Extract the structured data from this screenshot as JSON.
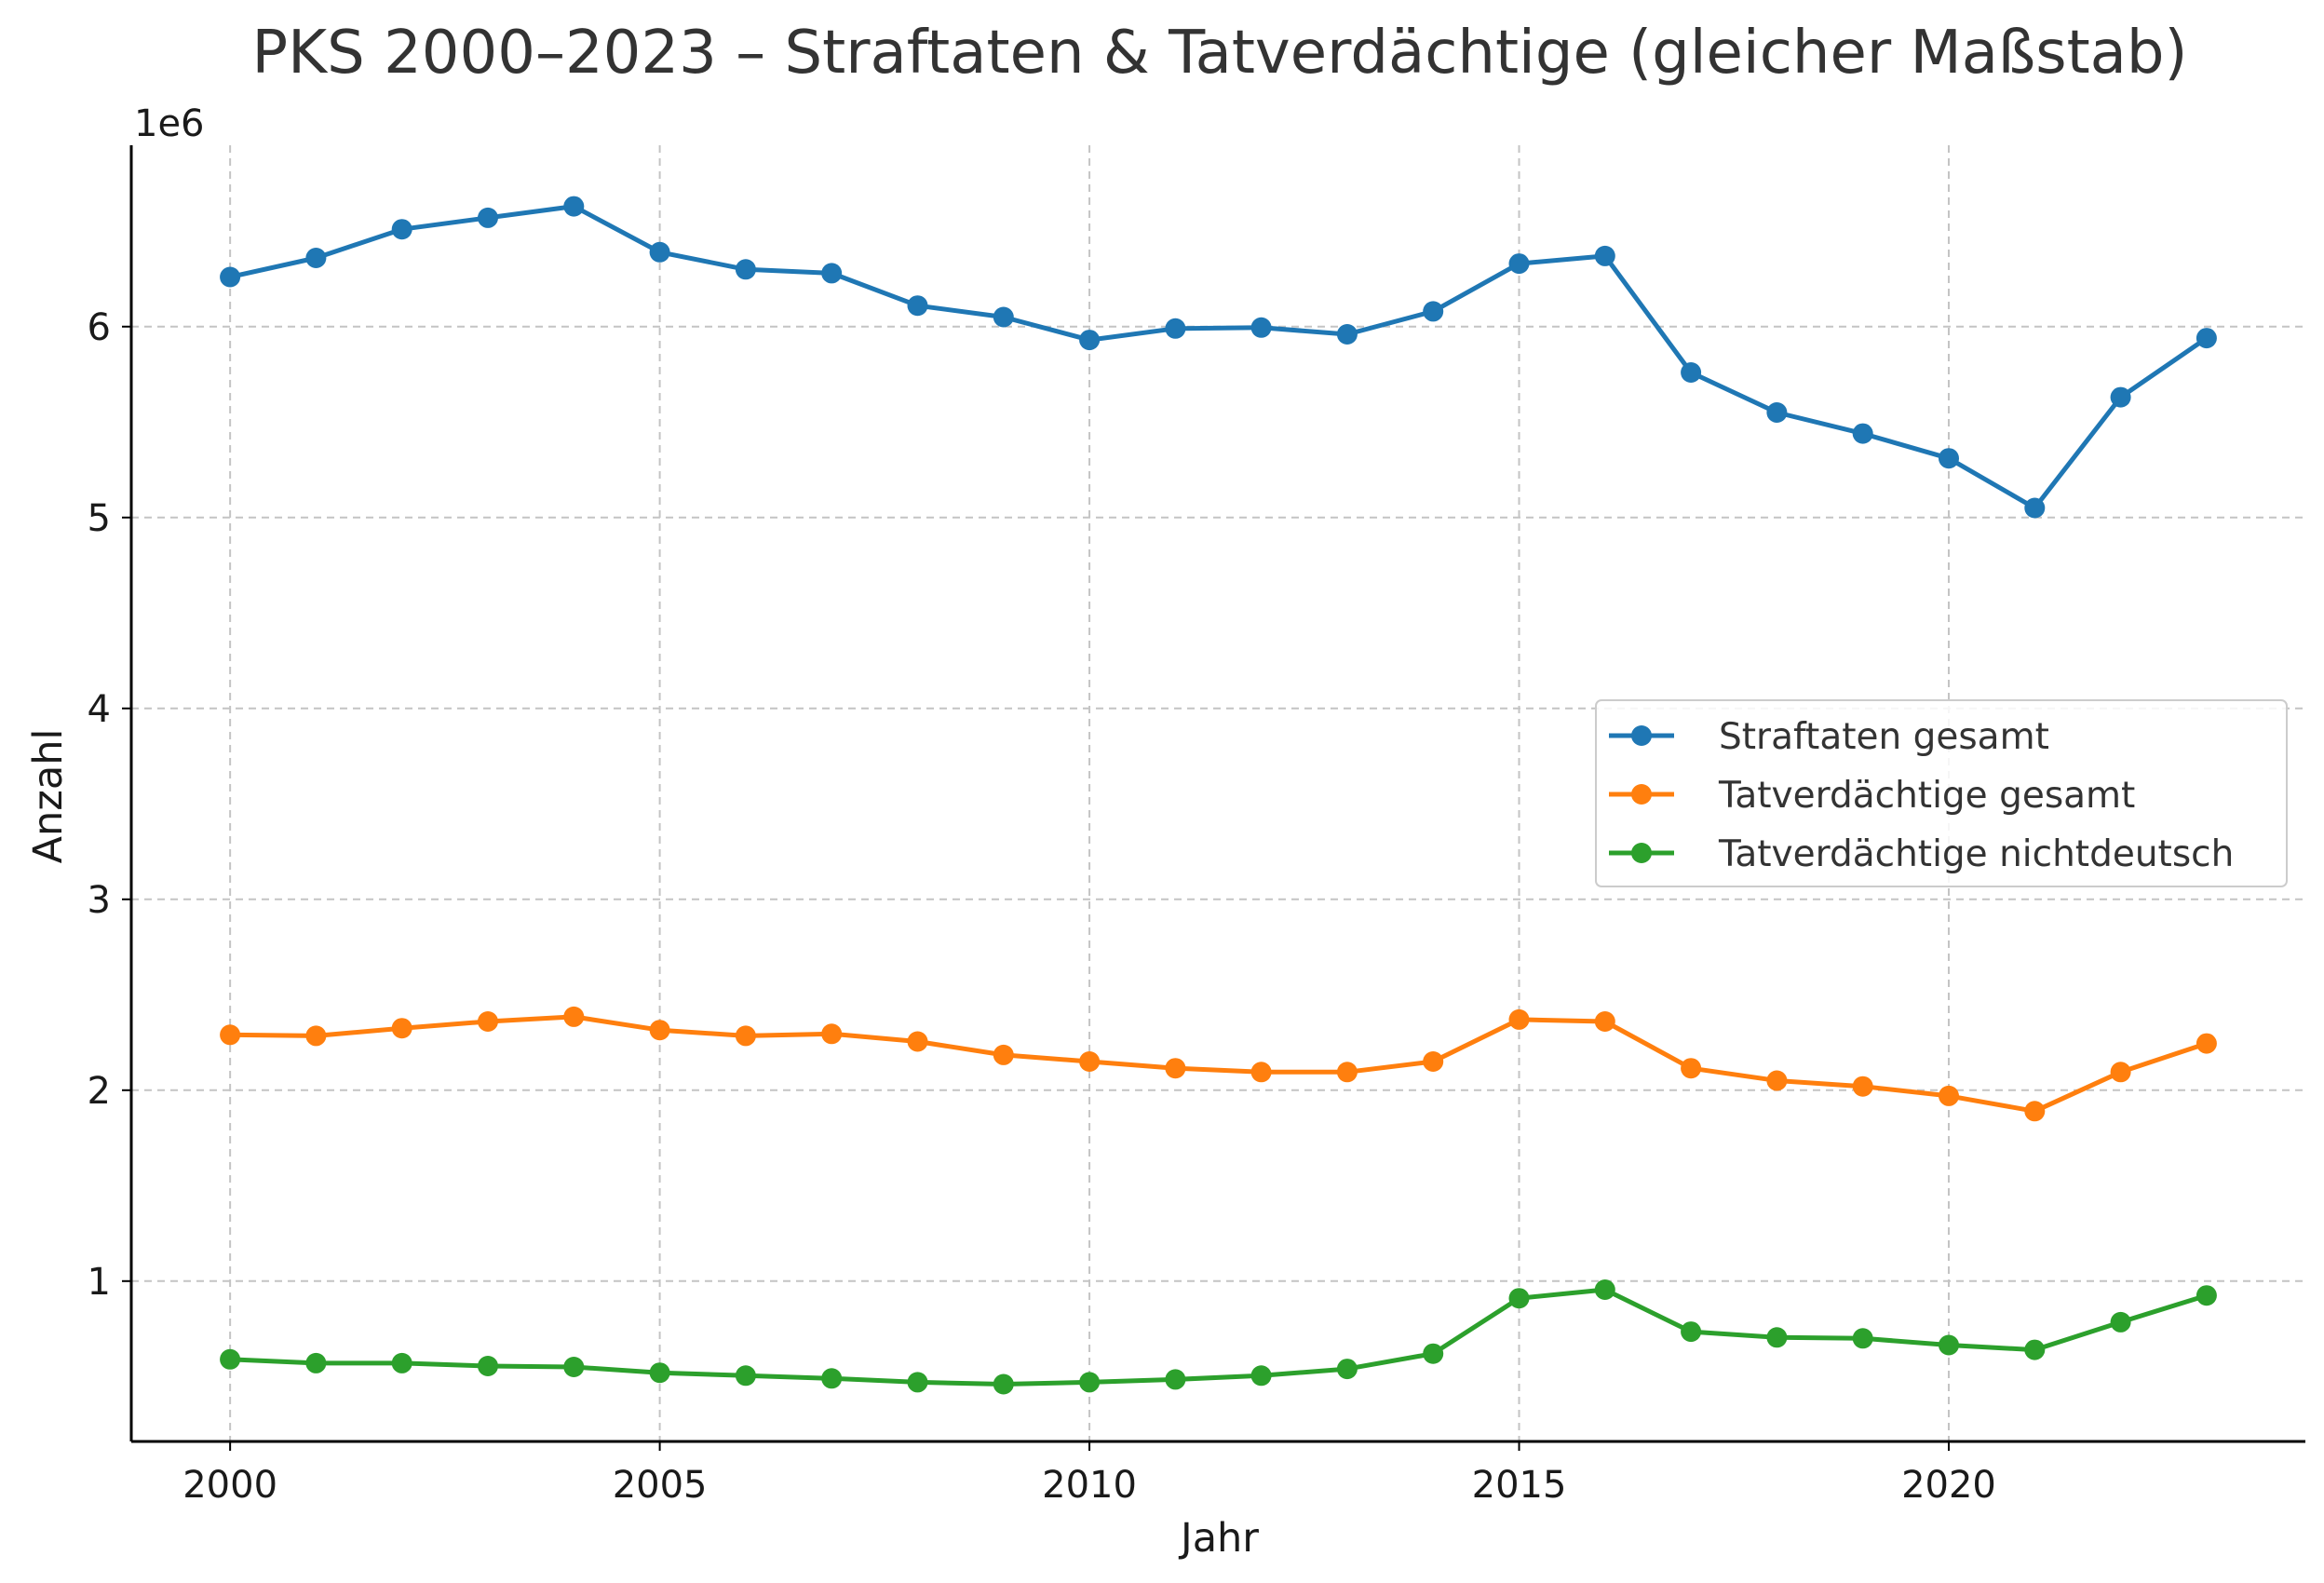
{
  "chart_data": {
    "type": "line",
    "title": "PKS 2000–2023 – Straftaten & Tatverdächtige (gleicher Maßstab)",
    "xlabel": "Jahr",
    "ylabel": "Anzahl",
    "offset_text": "1e6",
    "x": [
      2000,
      2001,
      2002,
      2003,
      2004,
      2005,
      2006,
      2007,
      2008,
      2009,
      2010,
      2011,
      2012,
      2013,
      2014,
      2015,
      2016,
      2017,
      2018,
      2019,
      2020,
      2021,
      2022,
      2023
    ],
    "xlim": [
      1998.85,
      2024.15
    ],
    "ylim": [
      160000,
      6950000
    ],
    "x_ticks": [
      2000,
      2005,
      2010,
      2015,
      2020
    ],
    "x_tick_labels": [
      "2000",
      "2005",
      "2010",
      "2015",
      "2020"
    ],
    "y_ticks": [
      1000000,
      2000000,
      3000000,
      4000000,
      5000000,
      6000000
    ],
    "y_tick_labels": [
      "1",
      "2",
      "3",
      "4",
      "5",
      "6"
    ],
    "grid": true,
    "legend_position": "center-right",
    "series": [
      {
        "name": "Straftaten gesamt",
        "color": "#1f77b4",
        "values": [
          6260000,
          6360000,
          6510000,
          6570000,
          6630000,
          6390000,
          6300000,
          6280000,
          6110000,
          6050000,
          5930000,
          5990000,
          5995000,
          5960000,
          6080000,
          6330000,
          6370000,
          5760000,
          5550000,
          5440000,
          5310000,
          5050000,
          5630000,
          5940000
        ]
      },
      {
        "name": "Tatverdächtige gesamt",
        "color": "#ff7f0e",
        "values": [
          2290000,
          2285000,
          2325000,
          2360000,
          2385000,
          2315000,
          2285000,
          2295000,
          2255000,
          2185000,
          2150000,
          2115000,
          2095000,
          2095000,
          2150000,
          2370000,
          2360000,
          2115000,
          2050000,
          2020000,
          1970000,
          1890000,
          2095000,
          2245000
        ]
      },
      {
        "name": "Tatverdächtige nichtdeutsch",
        "color": "#2ca02c",
        "values": [
          590000,
          570000,
          570000,
          555000,
          550000,
          520000,
          505000,
          490000,
          470000,
          460000,
          470000,
          485000,
          505000,
          540000,
          620000,
          910000,
          955000,
          735000,
          705000,
          700000,
          665000,
          640000,
          785000,
          925000
        ]
      }
    ]
  }
}
